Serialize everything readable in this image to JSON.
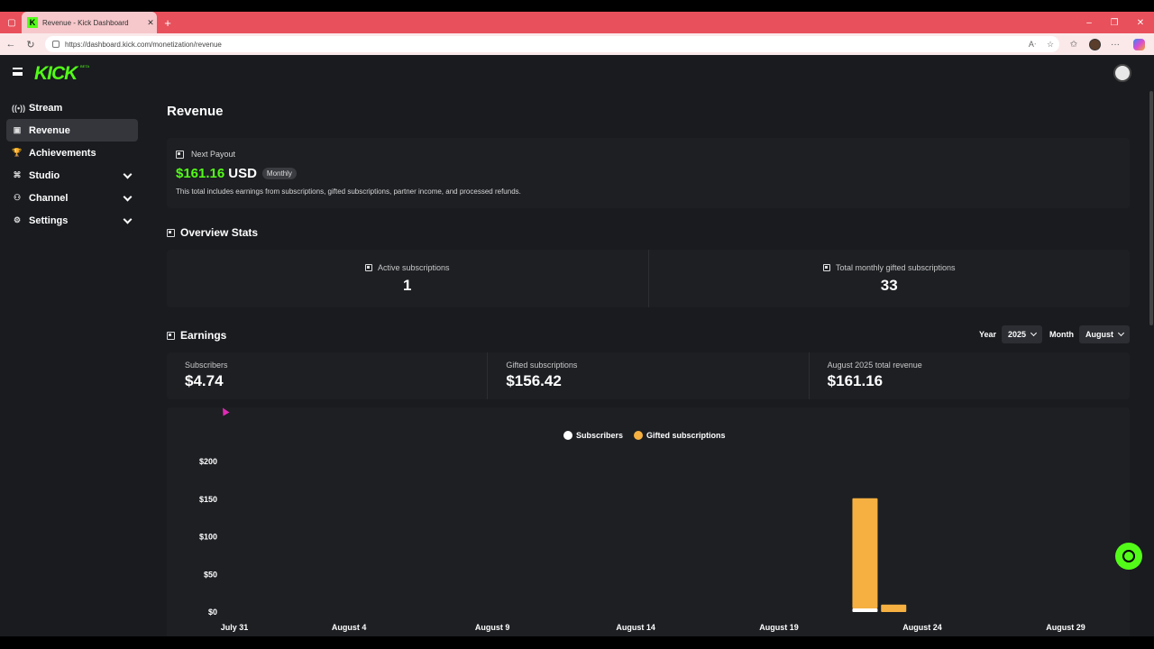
{
  "browser": {
    "tab_title": "Revenue - Kick Dashboard",
    "tab_favicon": "K",
    "url": "https://dashboard.kick.com/monetization/revenue"
  },
  "app": {
    "logo": "KICK",
    "logo_sup": "BETA"
  },
  "sidebar": {
    "items": [
      {
        "label": "Stream",
        "icon": "((•))"
      },
      {
        "label": "Revenue",
        "icon": "▣"
      },
      {
        "label": "Achievements",
        "icon": "🏆"
      },
      {
        "label": "Studio",
        "icon": "⌘"
      },
      {
        "label": "Channel",
        "icon": "⚇"
      },
      {
        "label": "Settings",
        "icon": "⚙"
      }
    ]
  },
  "page": {
    "title": "Revenue"
  },
  "payout": {
    "heading": "Next Payout",
    "amount": "$161.16",
    "currency": "USD",
    "badge": "Monthly",
    "note": "This total includes earnings from subscriptions, gifted subscriptions, partner income, and processed refunds."
  },
  "overview": {
    "title": "Overview Stats",
    "stats": [
      {
        "label": "Active subscriptions",
        "value": "1"
      },
      {
        "label": "Total monthly gifted subscriptions",
        "value": "33"
      }
    ]
  },
  "earnings": {
    "title": "Earnings",
    "year_label": "Year",
    "year_value": "2025",
    "month_label": "Month",
    "month_value": "August",
    "cards": [
      {
        "label": "Subscribers",
        "value": "$4.74"
      },
      {
        "label": "Gifted subscriptions",
        "value": "$156.42"
      },
      {
        "label": "August 2025 total revenue",
        "value": "$161.16"
      }
    ]
  },
  "colors": {
    "brand": "#53fc18",
    "subscribers": "#ffffff",
    "gifted": "#f5b041"
  },
  "chart_data": {
    "type": "bar",
    "stacked": true,
    "ylim": [
      0,
      200
    ],
    "yticks": [
      "$200",
      "$150",
      "$100",
      "$50",
      "$0"
    ],
    "ytick_values": [
      200,
      150,
      100,
      50,
      0
    ],
    "xticks": [
      "July 31",
      "August 4",
      "August 9",
      "August 14",
      "August 19",
      "August 24",
      "August 29"
    ],
    "xtick_days": [
      0,
      4,
      9,
      14,
      19,
      24,
      29
    ],
    "legend": [
      "Subscribers",
      "Gifted subscriptions"
    ],
    "series": [
      {
        "name": "Subscribers",
        "color": "#ffffff",
        "points": [
          {
            "day": 22,
            "value": 4.74
          }
        ]
      },
      {
        "name": "Gifted subscriptions",
        "color": "#f5b041",
        "points": [
          {
            "day": 22,
            "value": 146.5
          },
          {
            "day": 23,
            "value": 9.92
          }
        ]
      }
    ]
  }
}
